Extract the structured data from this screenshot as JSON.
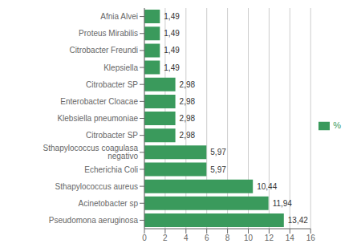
{
  "chart_data": {
    "type": "bar",
    "orientation": "horizontal",
    "categories": [
      "Pseudomona aeruginosa",
      "Acinetobacter sp",
      "Sthapylococcus aureus",
      "Echerichia Coli",
      "Sthapylococcus coagulasa negativo",
      "Citrobacter SP",
      "Klebsiella pneumoniae",
      "Enterobacter Cloacae",
      "Citrobacter SP",
      "Klepsiella",
      "Citrobacter Freundi",
      "Proteus Mirabilis",
      "Afnia Alvei"
    ],
    "series": [
      {
        "name": "%",
        "color": "#3a9a5c",
        "values": [
          13.42,
          11.94,
          10.44,
          5.97,
          5.97,
          2.98,
          2.98,
          2.98,
          2.98,
          1.49,
          1.49,
          1.49,
          1.49
        ],
        "value_labels": [
          "13,42",
          "11,94",
          "10,44",
          "5,97",
          "5,97",
          "2,98",
          "2,98",
          "2,98",
          "2,98",
          "1,49",
          "1,49",
          "1,49",
          "1,49"
        ]
      }
    ],
    "xlim": [
      0,
      16
    ],
    "xticks": [
      0,
      2,
      4,
      6,
      8,
      10,
      12,
      14,
      16
    ],
    "grid": true,
    "legend": "right",
    "data_labels": true
  }
}
